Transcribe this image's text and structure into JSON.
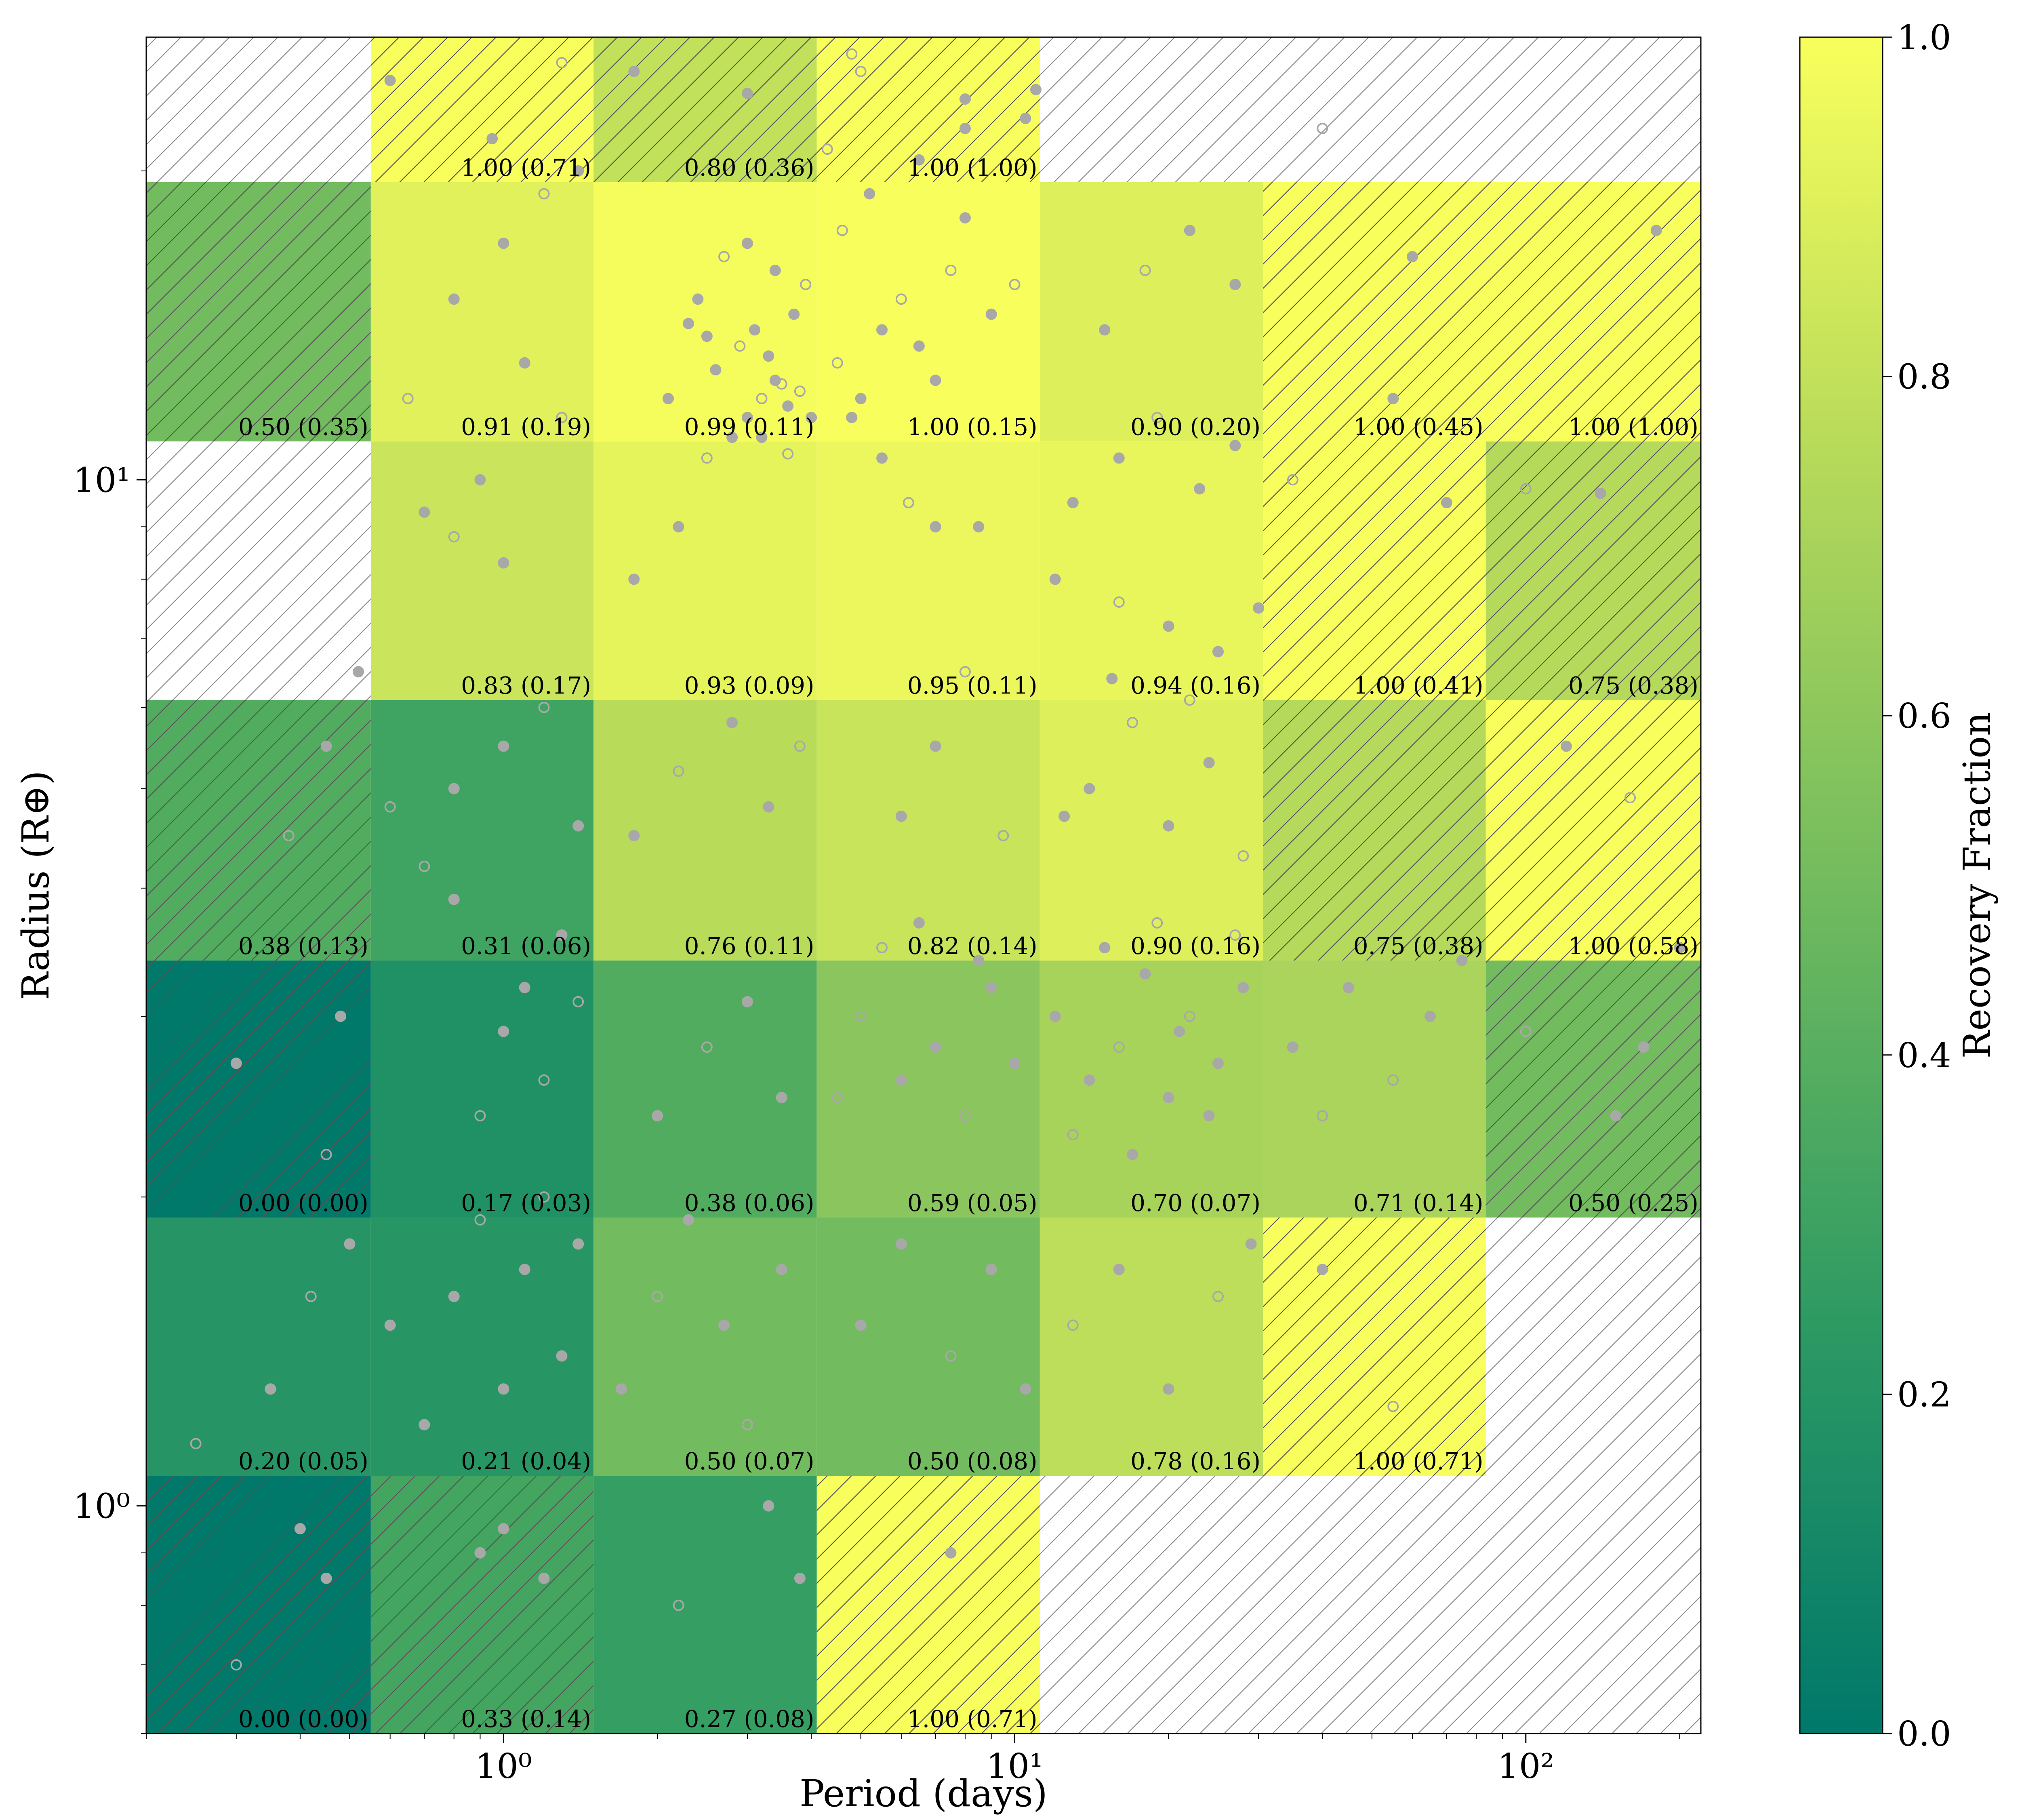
{
  "chart_data": {
    "type": "heatmap",
    "xlabel": "Period (days)",
    "ylabel": "Radius (R⊕)",
    "x_scale": "log",
    "y_scale": "log",
    "xlim": [
      0.2,
      220
    ],
    "ylim": [
      0.6,
      27
    ],
    "x_ticks": [
      {
        "value": 1,
        "label": "10⁰"
      },
      {
        "value": 10,
        "label": "10¹"
      },
      {
        "value": 100,
        "label": "10²"
      }
    ],
    "y_ticks": [
      {
        "value": 1,
        "label": "10⁰"
      },
      {
        "value": 10,
        "label": "10¹"
      }
    ],
    "x_bin_edges": [
      0.2,
      0.55,
      1.5,
      4.1,
      11.2,
      30.6,
      83.5,
      220
    ],
    "y_bin_edges": [
      0.6,
      1.07,
      1.91,
      3.4,
      6.1,
      10.9,
      19.5,
      27
    ],
    "colorbar": {
      "label": "Recovery Fraction",
      "min": 0.0,
      "max": 1.0,
      "ticks": [
        "0.0",
        "0.2",
        "0.4",
        "0.6",
        "0.8",
        "1.0"
      ],
      "color_stops": [
        "#00786a",
        "#2f9b63",
        "#72bb5e",
        "#b5d95a",
        "#f8ff5c"
      ]
    },
    "rows": [
      {
        "cells": [
          {
            "value": 0.0,
            "label": "0.00 (0.00)",
            "hatch": true
          },
          {
            "value": 0.33,
            "label": "0.33 (0.14)",
            "hatch": true
          },
          {
            "value": 0.27,
            "label": "0.27 (0.08)",
            "hatch": false
          },
          {
            "value": 1.0,
            "label": "1.00 (0.71)",
            "hatch": true
          },
          null,
          null,
          null
        ]
      },
      {
        "cells": [
          {
            "value": 0.2,
            "label": "0.20 (0.05)",
            "hatch": false
          },
          {
            "value": 0.21,
            "label": "0.21 (0.04)",
            "hatch": false
          },
          {
            "value": 0.5,
            "label": "0.50 (0.07)",
            "hatch": false
          },
          {
            "value": 0.5,
            "label": "0.50 (0.08)",
            "hatch": false
          },
          {
            "value": 0.78,
            "label": "0.78 (0.16)",
            "hatch": false
          },
          {
            "value": 1.0,
            "label": "1.00 (0.71)",
            "hatch": true
          },
          null
        ]
      },
      {
        "cells": [
          {
            "value": 0.0,
            "label": "0.00 (0.00)",
            "hatch": true
          },
          {
            "value": 0.17,
            "label": "0.17 (0.03)",
            "hatch": false
          },
          {
            "value": 0.38,
            "label": "0.38 (0.06)",
            "hatch": false
          },
          {
            "value": 0.59,
            "label": "0.59 (0.05)",
            "hatch": false
          },
          {
            "value": 0.7,
            "label": "0.70 (0.07)",
            "hatch": false
          },
          {
            "value": 0.71,
            "label": "0.71 (0.14)",
            "hatch": false
          },
          {
            "value": 0.5,
            "label": "0.50 (0.25)",
            "hatch": true
          }
        ]
      },
      {
        "cells": [
          {
            "value": 0.38,
            "label": "0.38 (0.13)",
            "hatch": true
          },
          {
            "value": 0.31,
            "label": "0.31 (0.06)",
            "hatch": false
          },
          {
            "value": 0.76,
            "label": "0.76 (0.11)",
            "hatch": false
          },
          {
            "value": 0.82,
            "label": "0.82 (0.14)",
            "hatch": false
          },
          {
            "value": 0.9,
            "label": "0.90 (0.16)",
            "hatch": false
          },
          {
            "value": 0.75,
            "label": "0.75 (0.38)",
            "hatch": true
          },
          {
            "value": 1.0,
            "label": "1.00 (0.58)",
            "hatch": true
          }
        ]
      },
      {
        "cells": [
          null,
          {
            "value": 0.83,
            "label": "0.83 (0.17)",
            "hatch": false
          },
          {
            "value": 0.93,
            "label": "0.93 (0.09)",
            "hatch": false
          },
          {
            "value": 0.95,
            "label": "0.95 (0.11)",
            "hatch": false
          },
          {
            "value": 0.94,
            "label": "0.94 (0.16)",
            "hatch": false
          },
          {
            "value": 1.0,
            "label": "1.00 (0.41)",
            "hatch": true
          },
          {
            "value": 0.75,
            "label": "0.75 (0.38)",
            "hatch": true
          }
        ]
      },
      {
        "cells": [
          {
            "value": 0.5,
            "label": "0.50 (0.35)",
            "hatch": true
          },
          {
            "value": 0.91,
            "label": "0.91 (0.19)",
            "hatch": false
          },
          {
            "value": 0.99,
            "label": "0.99 (0.11)",
            "hatch": false
          },
          {
            "value": 1.0,
            "label": "1.00 (0.15)",
            "hatch": false
          },
          {
            "value": 0.9,
            "label": "0.90 (0.20)",
            "hatch": false
          },
          {
            "value": 1.0,
            "label": "1.00 (0.45)",
            "hatch": true
          },
          {
            "value": 1.0,
            "label": "1.00 (1.00)",
            "hatch": true
          }
        ]
      },
      {
        "cells": [
          null,
          {
            "value": 1.0,
            "label": "1.00 (0.71)",
            "hatch": true
          },
          {
            "value": 0.8,
            "label": "0.80 (0.36)",
            "hatch": true
          },
          {
            "value": 1.0,
            "label": "1.00 (1.00)",
            "hatch": true
          },
          null,
          null,
          null
        ]
      }
    ],
    "scatter": {
      "color": "#a8a8a8",
      "points": [
        [
          0.3,
          0.7
        ],
        [
          0.4,
          0.95
        ],
        [
          0.35,
          1.3
        ],
        [
          0.42,
          1.6
        ],
        [
          0.5,
          1.8
        ],
        [
          0.6,
          1.5
        ],
        [
          0.45,
          2.2
        ],
        [
          0.3,
          2.7
        ],
        [
          0.48,
          3.0
        ],
        [
          0.38,
          4.5
        ],
        [
          0.45,
          5.5
        ],
        [
          0.52,
          6.5
        ],
        [
          0.6,
          4.8
        ],
        [
          0.7,
          1.2
        ],
        [
          0.8,
          1.6
        ],
        [
          0.9,
          1.9
        ],
        [
          1.0,
          1.3
        ],
        [
          1.1,
          1.7
        ],
        [
          1.2,
          2.0
        ],
        [
          1.3,
          1.4
        ],
        [
          1.4,
          1.8
        ],
        [
          0.9,
          2.4
        ],
        [
          1.0,
          2.9
        ],
        [
          1.1,
          3.2
        ],
        [
          1.2,
          2.6
        ],
        [
          1.3,
          3.6
        ],
        [
          0.8,
          3.9
        ],
        [
          1.4,
          3.1
        ],
        [
          1.2,
          0.85
        ],
        [
          0.9,
          0.9
        ],
        [
          0.7,
          4.2
        ],
        [
          0.8,
          5.0
        ],
        [
          1.0,
          5.5
        ],
        [
          1.2,
          6.0
        ],
        [
          1.4,
          4.6
        ],
        [
          1.7,
          1.3
        ],
        [
          2.0,
          1.6
        ],
        [
          2.3,
          1.9
        ],
        [
          2.7,
          1.5
        ],
        [
          3.0,
          1.2
        ],
        [
          3.5,
          1.7
        ],
        [
          2.0,
          2.4
        ],
        [
          2.5,
          2.8
        ],
        [
          3.0,
          3.1
        ],
        [
          3.5,
          2.5
        ],
        [
          2.2,
          0.8
        ],
        [
          3.3,
          1.0
        ],
        [
          1.8,
          4.5
        ],
        [
          2.2,
          5.2
        ],
        [
          2.8,
          5.8
        ],
        [
          3.3,
          4.8
        ],
        [
          3.8,
          5.5
        ],
        [
          1.8,
          8.0
        ],
        [
          2.2,
          9.0
        ],
        [
          2.5,
          10.5
        ],
        [
          2.8,
          11.0
        ],
        [
          3.0,
          11.5
        ],
        [
          3.2,
          12.0
        ],
        [
          3.4,
          12.5
        ],
        [
          3.6,
          11.8
        ],
        [
          3.8,
          12.2
        ],
        [
          4.0,
          11.5
        ],
        [
          2.6,
          12.8
        ],
        [
          2.9,
          13.5
        ],
        [
          3.1,
          14.0
        ],
        [
          3.3,
          13.2
        ],
        [
          3.5,
          12.4
        ],
        [
          3.7,
          14.5
        ],
        [
          2.4,
          15.0
        ],
        [
          2.7,
          16.5
        ],
        [
          3.0,
          17.0
        ],
        [
          3.4,
          16.0
        ],
        [
          3.9,
          15.5
        ],
        [
          2.5,
          13.8
        ],
        [
          3.2,
          11.0
        ],
        [
          3.6,
          10.6
        ],
        [
          2.1,
          12.0
        ],
        [
          2.3,
          14.2
        ],
        [
          4.5,
          13.0
        ],
        [
          5.0,
          12.0
        ],
        [
          5.5,
          14.0
        ],
        [
          6.0,
          15.0
        ],
        [
          6.5,
          13.5
        ],
        [
          7.0,
          12.5
        ],
        [
          7.5,
          16.0
        ],
        [
          8.0,
          18.0
        ],
        [
          9.0,
          14.5
        ],
        [
          10.0,
          15.5
        ],
        [
          4.8,
          11.5
        ],
        [
          5.5,
          10.5
        ],
        [
          6.2,
          9.5
        ],
        [
          7.0,
          9.0
        ],
        [
          8.5,
          9.0
        ],
        [
          4.6,
          17.5
        ],
        [
          5.2,
          19.0
        ],
        [
          6.5,
          20.5
        ],
        [
          4.3,
          21.0
        ],
        [
          8.0,
          22.0
        ],
        [
          10.5,
          22.5
        ],
        [
          0.65,
          12.0
        ],
        [
          0.9,
          10.0
        ],
        [
          1.1,
          13.0
        ],
        [
          1.3,
          11.5
        ],
        [
          0.8,
          15.0
        ],
        [
          1.0,
          17.0
        ],
        [
          1.2,
          19.0
        ],
        [
          1.4,
          20.0
        ],
        [
          0.95,
          21.5
        ],
        [
          5.0,
          3.0
        ],
        [
          6.0,
          2.6
        ],
        [
          7.0,
          2.8
        ],
        [
          8.0,
          2.4
        ],
        [
          9.0,
          3.2
        ],
        [
          10.0,
          2.7
        ],
        [
          5.5,
          3.5
        ],
        [
          6.5,
          3.7
        ],
        [
          8.5,
          3.4
        ],
        [
          4.5,
          2.5
        ],
        [
          12.0,
          3.0
        ],
        [
          14.0,
          2.6
        ],
        [
          16.0,
          2.8
        ],
        [
          18.0,
          3.3
        ],
        [
          20.0,
          2.5
        ],
        [
          22.0,
          3.0
        ],
        [
          25.0,
          2.7
        ],
        [
          28.0,
          3.2
        ],
        [
          13.0,
          2.3
        ],
        [
          15.0,
          3.5
        ],
        [
          17.0,
          2.2
        ],
        [
          19.0,
          3.7
        ],
        [
          21.0,
          2.9
        ],
        [
          24.0,
          2.4
        ],
        [
          27.0,
          3.6
        ],
        [
          35.0,
          2.8
        ],
        [
          45.0,
          3.2
        ],
        [
          55.0,
          2.6
        ],
        [
          65.0,
          3.0
        ],
        [
          75.0,
          3.4
        ],
        [
          40.0,
          2.4
        ],
        [
          5.0,
          1.5
        ],
        [
          6.0,
          1.8
        ],
        [
          7.5,
          1.4
        ],
        [
          9.0,
          1.7
        ],
        [
          10.5,
          1.3
        ],
        [
          13.0,
          1.5
        ],
        [
          16.0,
          1.7
        ],
        [
          20.0,
          1.3
        ],
        [
          25.0,
          1.6
        ],
        [
          29.0,
          1.8
        ],
        [
          14.0,
          5.0
        ],
        [
          17.0,
          5.8
        ],
        [
          20.0,
          4.6
        ],
        [
          24.0,
          5.3
        ],
        [
          28.0,
          4.3
        ],
        [
          12.5,
          4.7
        ],
        [
          15.5,
          6.4
        ],
        [
          22.0,
          6.1
        ],
        [
          13.0,
          9.5
        ],
        [
          16.0,
          10.5
        ],
        [
          19.0,
          11.5
        ],
        [
          23.0,
          9.8
        ],
        [
          27.0,
          10.8
        ],
        [
          35.0,
          10.0
        ],
        [
          55.0,
          12.0
        ],
        [
          70.0,
          9.5
        ],
        [
          100.0,
          9.8
        ],
        [
          140.0,
          9.7
        ],
        [
          15.0,
          14.0
        ],
        [
          18.0,
          16.0
        ],
        [
          22.0,
          17.5
        ],
        [
          27.0,
          15.5
        ],
        [
          40.0,
          22.0
        ],
        [
          60.0,
          16.5
        ],
        [
          180.0,
          17.5
        ],
        [
          5.0,
          25.0
        ],
        [
          8.0,
          23.5
        ],
        [
          11.0,
          24.0
        ],
        [
          1.3,
          25.5
        ],
        [
          0.6,
          24.5
        ],
        [
          3.0,
          23.8
        ],
        [
          4.8,
          26.0
        ],
        [
          1.8,
          25.0
        ],
        [
          0.7,
          9.3
        ],
        [
          0.8,
          8.8
        ],
        [
          1.0,
          8.3
        ],
        [
          12.0,
          8.0
        ],
        [
          16.0,
          7.6
        ],
        [
          20.0,
          7.2
        ],
        [
          25.0,
          6.8
        ],
        [
          8.0,
          6.5
        ],
        [
          7.0,
          5.5
        ],
        [
          6.0,
          4.7
        ],
        [
          9.5,
          4.5
        ],
        [
          30.0,
          7.5
        ],
        [
          120.0,
          5.5
        ],
        [
          160.0,
          4.9
        ],
        [
          170.0,
          2.8
        ],
        [
          200.0,
          3.5
        ],
        [
          100.0,
          2.9
        ],
        [
          150.0,
          2.4
        ],
        [
          40.0,
          1.7
        ],
        [
          55.0,
          1.25
        ],
        [
          1.0,
          0.95
        ],
        [
          0.45,
          0.85
        ],
        [
          0.25,
          1.15
        ],
        [
          3.8,
          0.85
        ],
        [
          7.5,
          0.9
        ]
      ]
    }
  }
}
